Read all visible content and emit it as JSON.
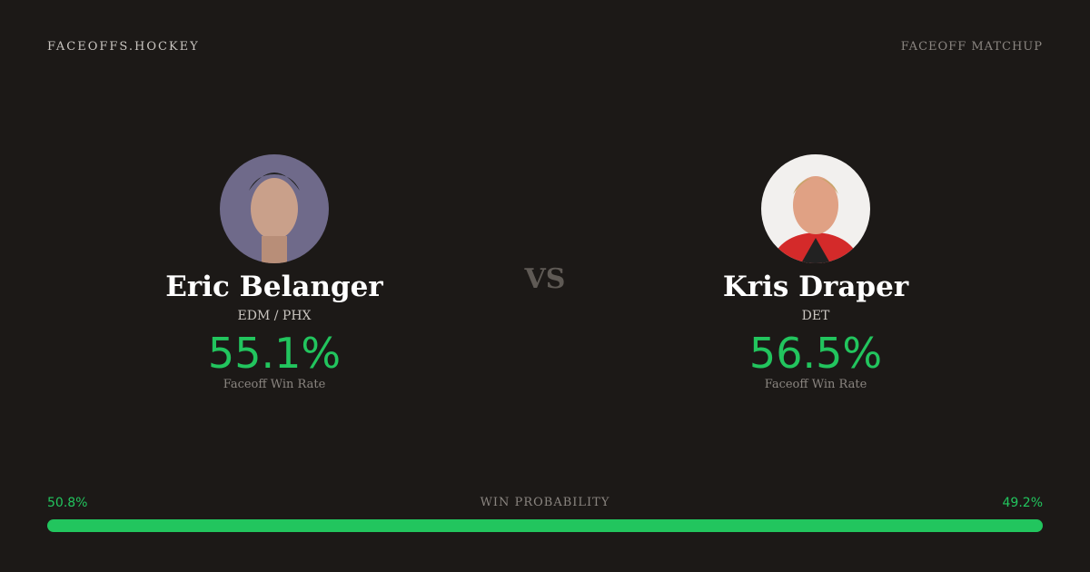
{
  "header": {
    "brand": "FACEOFFS.HOCKEY",
    "title": "FACEOFF MATCHUP"
  },
  "vs": "VS",
  "players": [
    {
      "name": "Eric Belanger",
      "team": "EDM / PHX",
      "rate": "55.1%",
      "rate_caption": "Faceoff Win Rate"
    },
    {
      "name": "Kris Draper",
      "team": "DET",
      "rate": "56.5%",
      "rate_caption": "Faceoff Win Rate"
    }
  ],
  "win_probability": {
    "label": "WIN PROBABILITY",
    "color": "#22c55e",
    "left": {
      "value": 50.8,
      "label": "50.8%"
    },
    "right": {
      "value": 49.2,
      "label": "49.2%"
    }
  }
}
